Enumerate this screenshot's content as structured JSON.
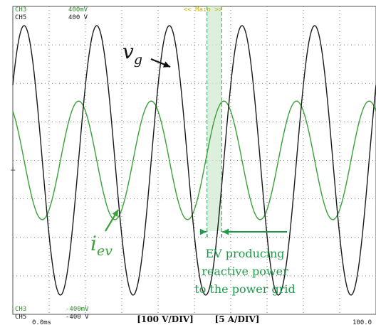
{
  "header": {
    "ch3_label": "CH3",
    "ch5_label": "CH5",
    "ch3_top": "400mV",
    "ch5_top": "400 V",
    "mode": "<< Main >>"
  },
  "footer": {
    "ch3_label": "CH3",
    "ch5_label": "CH5",
    "ch3_bottom": "-400mV",
    "ch5_bottom": "-400 V",
    "time_start": "0.0ms",
    "time_end": "100.0",
    "volt_scale": "[100 V/DIV]",
    "amp_scale": "[5 A/DIV]"
  },
  "labels": {
    "vg_main": "v",
    "vg_sub": "g",
    "iev_main": "i",
    "iev_sub": "ev",
    "trigger_mark": "⊣",
    "annotation_lines": [
      "EV producing",
      "reactive power",
      "to the power grid"
    ]
  },
  "colors": {
    "voltage": "#1a1a1a",
    "current": "#3aa03a",
    "annotation": "#1f9a4a",
    "highlight": "#cfe8cf",
    "grid": "#7a7a7a"
  },
  "chart_data": {
    "type": "line",
    "xlabel": "",
    "ylabel": "",
    "x_unit": "ms",
    "xlim": [
      0,
      100
    ],
    "ylim": [
      -400,
      400
    ],
    "series": [
      {
        "name": "v",
        "unit": "V",
        "amplitude": 350,
        "frequency_hz": 50,
        "phase_deg": 34,
        "channel": "CH5"
      },
      {
        "name": "i",
        "unit": "A",
        "amplitude": 7.7,
        "frequency_hz": 50,
        "phase_deg": 124,
        "offset": 0,
        "channel": "CH3"
      }
    ],
    "highlight_window_ms": [
      53.5,
      57.5
    ]
  }
}
